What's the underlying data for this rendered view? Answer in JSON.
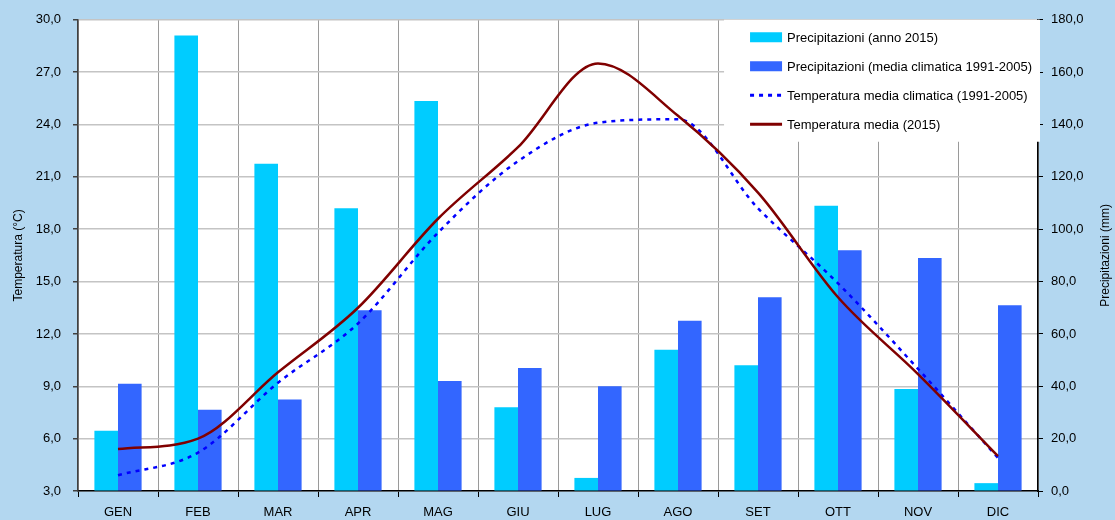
{
  "chart_data": {
    "type": "bar",
    "categories": [
      "GEN",
      "FEB",
      "MAR",
      "APR",
      "MAG",
      "GIU",
      "LUG",
      "AGO",
      "SET",
      "OTT",
      "NOV",
      "DIC"
    ],
    "series": [
      {
        "name": "Precipitazioni (anno 2015)",
        "axis": "y2",
        "color": "#00ccff",
        "values": [
          23,
          174,
          125,
          108,
          149,
          32,
          5,
          54,
          48,
          109,
          39,
          3
        ]
      },
      {
        "name": "Precipitazioni (media climatica 1991-2005)",
        "axis": "y2",
        "color": "#3366ff",
        "values": [
          41,
          31,
          35,
          69,
          42,
          47,
          40,
          65,
          74,
          92,
          89,
          71
        ]
      },
      {
        "name": "Temperatura media climatica (1991-2005)",
        "type": "line",
        "color": "#0000ff",
        "line_style": "dashed",
        "marker": "none",
        "values": [
          3.9,
          5.2,
          9.2,
          12.6,
          17.8,
          21.9,
          24.1,
          24.3,
          19.2,
          14.9,
          10.0,
          4.9
        ]
      },
      {
        "name": "Temperatura media (2015)",
        "type": "line",
        "color": "#800000",
        "line_style": "solid",
        "marker": "none",
        "values": [
          5.4,
          6.0,
          9.8,
          13.5,
          18.6,
          22.7,
          27.5,
          24.5,
          20.1,
          14.1,
          9.7,
          5.0
        ]
      }
    ],
    "ylabel": "Temperatura (°C)",
    "y2label": "Precipitazioni (mm)",
    "ylim": [
      3,
      30
    ],
    "yticks": [
      {
        "value": 3,
        "label": "3,0"
      },
      {
        "value": 6,
        "label": "6,0"
      },
      {
        "value": 9,
        "label": "9,0"
      },
      {
        "value": 12,
        "label": "12,0"
      },
      {
        "value": 15,
        "label": "15,0"
      },
      {
        "value": 18,
        "label": "18,0"
      },
      {
        "value": 21,
        "label": "21,0"
      },
      {
        "value": 24,
        "label": "24,0"
      },
      {
        "value": 27,
        "label": "27,0"
      },
      {
        "value": 30,
        "label": "30,0"
      }
    ],
    "y2lim": [
      0,
      180
    ],
    "y2ticks": [
      {
        "value": 0,
        "label": "0,0"
      },
      {
        "value": 20,
        "label": "20,0"
      },
      {
        "value": 40,
        "label": "40,0"
      },
      {
        "value": 60,
        "label": "60,0"
      },
      {
        "value": 80,
        "label": "80,0"
      },
      {
        "value": 100,
        "label": "100,0"
      },
      {
        "value": 120,
        "label": "120,0"
      },
      {
        "value": 140,
        "label": "140,0"
      },
      {
        "value": 160,
        "label": "160,0"
      },
      {
        "value": 180,
        "label": "180,0"
      }
    ],
    "grid": true,
    "legend": "top right"
  }
}
